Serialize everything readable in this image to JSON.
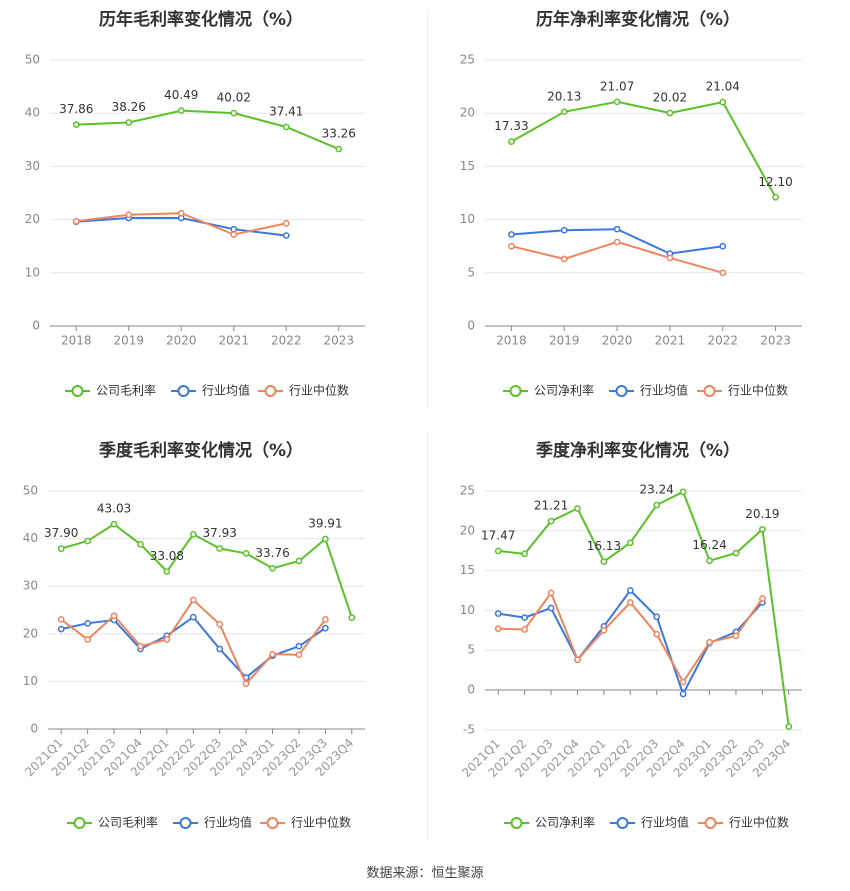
{
  "source": "数据来源：恒生聚源",
  "chart_data": [
    {
      "type": "line",
      "title": "历年毛利率变化情况（%）",
      "categories": [
        "2018",
        "2019",
        "2020",
        "2021",
        "2022",
        "2023"
      ],
      "yticks": [
        0,
        10,
        20,
        30,
        40,
        50
      ],
      "ylim": [
        0,
        50
      ],
      "rotate_x": false,
      "series": [
        {
          "name": "公司毛利率",
          "color": "#5ac229",
          "values": [
            37.86,
            38.26,
            40.49,
            40.02,
            37.41,
            33.26
          ],
          "labels": [
            "37.86",
            "38.26",
            "40.49",
            "40.02",
            "37.41",
            "33.26"
          ]
        },
        {
          "name": "行业均值",
          "color": "#3a78dc",
          "values": [
            19.6,
            20.3,
            20.3,
            18.2,
            17.0,
            null
          ]
        },
        {
          "name": "行业中位数",
          "color": "#f0845c",
          "values": [
            19.7,
            20.9,
            21.2,
            17.2,
            19.3,
            null
          ]
        }
      ]
    },
    {
      "type": "line",
      "title": "历年净利率变化情况（%）",
      "categories": [
        "2018",
        "2019",
        "2020",
        "2021",
        "2022",
        "2023"
      ],
      "yticks": [
        0,
        5,
        10,
        15,
        20,
        25
      ],
      "ylim": [
        0,
        25
      ],
      "rotate_x": false,
      "series": [
        {
          "name": "公司净利率",
          "color": "#5ac229",
          "values": [
            17.33,
            20.13,
            21.07,
            20.02,
            21.04,
            12.1
          ],
          "labels": [
            "17.33",
            "20.13",
            "21.07",
            "20.02",
            "21.04",
            "12.10"
          ]
        },
        {
          "name": "行业均值",
          "color": "#3a78dc",
          "values": [
            8.6,
            9.0,
            9.1,
            6.8,
            7.5,
            null
          ]
        },
        {
          "name": "行业中位数",
          "color": "#f0845c",
          "values": [
            7.5,
            6.3,
            7.9,
            6.4,
            5.0,
            null
          ]
        }
      ]
    },
    {
      "type": "line",
      "title": "季度毛利率变化情况（%）",
      "categories": [
        "2021Q1",
        "2021Q2",
        "2021Q3",
        "2021Q4",
        "2022Q1",
        "2022Q2",
        "2022Q3",
        "2022Q4",
        "2023Q1",
        "2023Q2",
        "2023Q3",
        "2023Q4"
      ],
      "yticks": [
        0,
        10,
        20,
        30,
        40,
        50
      ],
      "ylim": [
        0,
        50
      ],
      "rotate_x": true,
      "series": [
        {
          "name": "公司毛利率",
          "color": "#5ac229",
          "values": [
            37.9,
            39.5,
            43.03,
            38.8,
            33.08,
            40.9,
            37.93,
            36.9,
            33.76,
            35.3,
            39.91,
            23.4
          ],
          "labels": [
            "37.90",
            null,
            "43.03",
            null,
            "33.08",
            null,
            "37.93",
            null,
            "33.76",
            null,
            "39.91",
            null
          ]
        },
        {
          "name": "行业均值",
          "color": "#3a78dc",
          "values": [
            21.0,
            22.2,
            22.9,
            16.8,
            19.6,
            23.5,
            16.8,
            10.8,
            15.4,
            17.4,
            21.2,
            null
          ]
        },
        {
          "name": "行业中位数",
          "color": "#f0845c",
          "values": [
            23.0,
            18.8,
            23.8,
            17.4,
            18.8,
            27.1,
            22.0,
            9.5,
            15.7,
            15.6,
            23.0,
            null
          ]
        }
      ]
    },
    {
      "type": "line",
      "title": "季度净利率变化情况（%）",
      "categories": [
        "2021Q1",
        "2021Q2",
        "2021Q3",
        "2021Q4",
        "2022Q1",
        "2022Q2",
        "2022Q3",
        "2022Q4",
        "2023Q1",
        "2023Q2",
        "2023Q3",
        "2023Q4"
      ],
      "yticks": [
        -5,
        0,
        5,
        10,
        15,
        20,
        25
      ],
      "ylim": [
        -5,
        25
      ],
      "rotate_x": true,
      "series": [
        {
          "name": "公司净利率",
          "color": "#5ac229",
          "values": [
            17.47,
            17.1,
            21.21,
            22.8,
            16.13,
            18.5,
            23.24,
            24.9,
            16.24,
            17.2,
            20.19,
            -4.6
          ],
          "labels": [
            "17.47",
            null,
            "21.21",
            null,
            "16.13",
            null,
            "23.24",
            null,
            "16.24",
            null,
            "20.19",
            null
          ]
        },
        {
          "name": "行业均值",
          "color": "#3a78dc",
          "values": [
            9.6,
            9.1,
            10.3,
            3.8,
            8.0,
            12.5,
            9.2,
            -0.5,
            5.9,
            7.3,
            11.0,
            null
          ]
        },
        {
          "name": "行业中位数",
          "color": "#f0845c",
          "values": [
            7.7,
            7.6,
            12.2,
            3.8,
            7.5,
            11.0,
            7.0,
            1.0,
            6.0,
            6.8,
            11.5,
            null
          ]
        }
      ]
    }
  ]
}
